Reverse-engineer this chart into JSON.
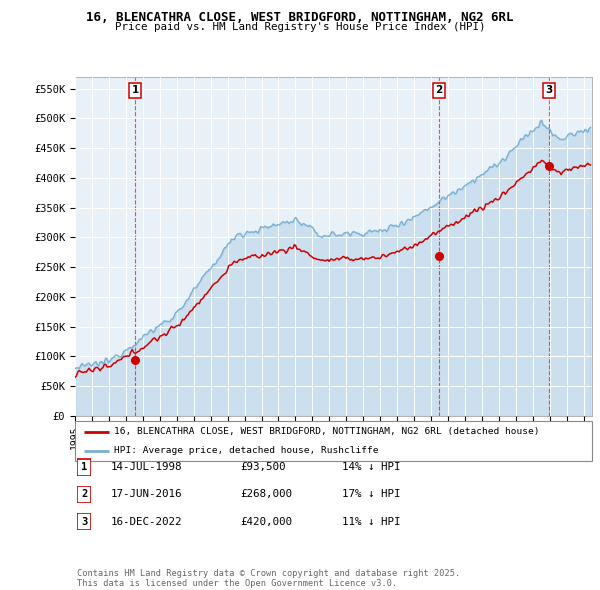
{
  "title1": "16, BLENCATHRA CLOSE, WEST BRIDGFORD, NOTTINGHAM, NG2 6RL",
  "title2": "Price paid vs. HM Land Registry's House Price Index (HPI)",
  "ylabel_ticks": [
    "£0",
    "£50K",
    "£100K",
    "£150K",
    "£200K",
    "£250K",
    "£300K",
    "£350K",
    "£400K",
    "£450K",
    "£500K",
    "£550K"
  ],
  "ytick_values": [
    0,
    50000,
    100000,
    150000,
    200000,
    250000,
    300000,
    350000,
    400000,
    450000,
    500000,
    550000
  ],
  "sale1_date": 1998.54,
  "sale1_price": 93500,
  "sale1_label": "1",
  "sale2_date": 2016.46,
  "sale2_price": 268000,
  "sale2_label": "2",
  "sale3_date": 2022.96,
  "sale3_price": 420000,
  "sale3_label": "3",
  "red_line_color": "#cc0000",
  "blue_line_color": "#7ab0d4",
  "blue_fill_color": "#ddeeff",
  "sale_marker_color": "#cc0000",
  "legend_entry1": "16, BLENCATHRA CLOSE, WEST BRIDGFORD, NOTTINGHAM, NG2 6RL (detached house)",
  "legend_entry2": "HPI: Average price, detached house, Rushcliffe",
  "table_row1": [
    "1",
    "14-JUL-1998",
    "£93,500",
    "14% ↓ HPI"
  ],
  "table_row2": [
    "2",
    "17-JUN-2016",
    "£268,000",
    "17% ↓ HPI"
  ],
  "table_row3": [
    "3",
    "16-DEC-2022",
    "£420,000",
    "11% ↓ HPI"
  ],
  "footer": "Contains HM Land Registry data © Crown copyright and database right 2025.\nThis data is licensed under the Open Government Licence v3.0.",
  "xmin": 1995,
  "xmax": 2025.5,
  "ymin": 0,
  "ymax": 570000,
  "chart_bg": "#e8f0f8"
}
